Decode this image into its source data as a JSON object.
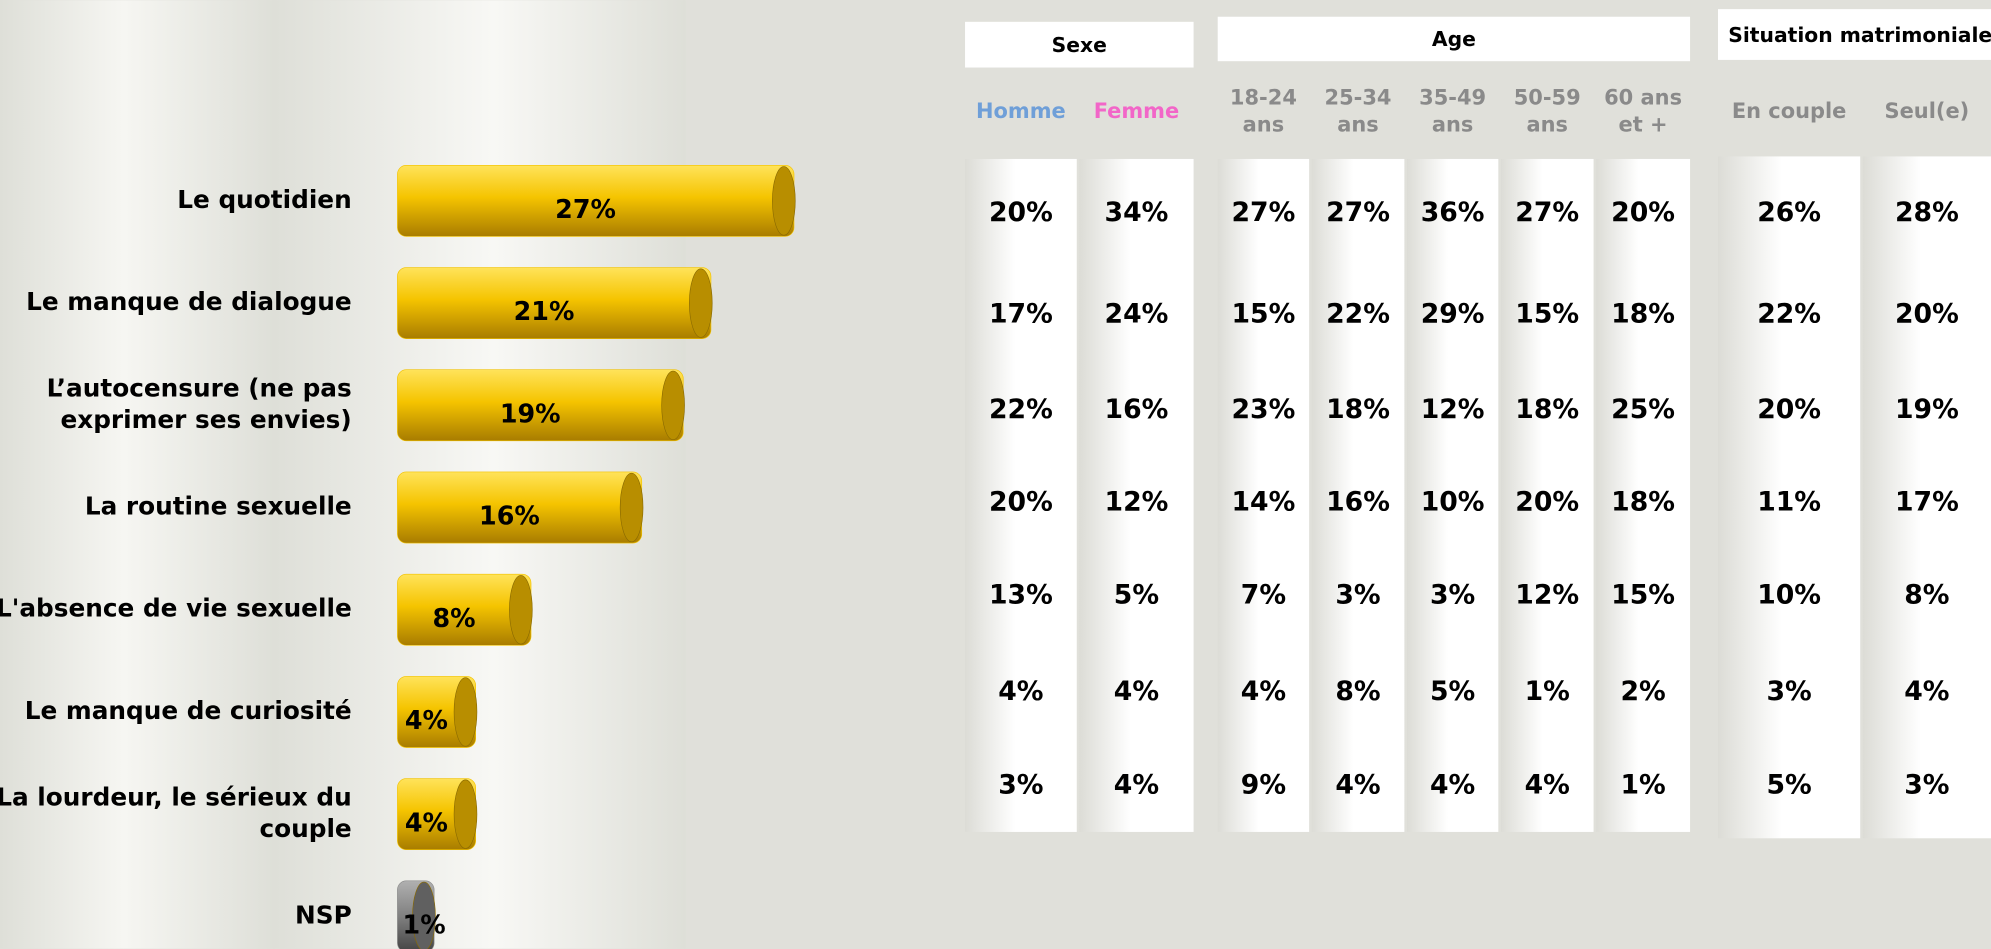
{
  "chart_data": {
    "type": "bar",
    "orientation": "horizontal",
    "categories": [
      [
        "Le quotidien"
      ],
      [
        "Le manque de dialogue"
      ],
      [
        "L’autocensure (ne pas",
        "exprimer ses envies)"
      ],
      [
        "La routine sexuelle"
      ],
      [
        "L'absence de vie sexuelle"
      ],
      [
        "Le manque de curiosité"
      ],
      [
        "La lourdeur, le sérieux du",
        "couple"
      ],
      [
        "NSP"
      ]
    ],
    "values": [
      27,
      21,
      19,
      16,
      8,
      4,
      4,
      1
    ],
    "value_labels": [
      "27%",
      "21%",
      "19%",
      "16%",
      "8%",
      "4%",
      "4%",
      "1%"
    ],
    "colors": [
      "#f2c200",
      "#f2c200",
      "#f2c200",
      "#f2c200",
      "#f2c200",
      "#f2c200",
      "#f2c200",
      "#8a8a8a"
    ]
  },
  "table": {
    "groups": [
      {
        "title": "Sexe",
        "columns": [
          {
            "lines": [
              "Homme"
            ],
            "color": "#6f9fd8"
          },
          {
            "lines": [
              "Femme"
            ],
            "color": "#f266c8"
          }
        ]
      },
      {
        "title": "Age",
        "columns": [
          {
            "lines": [
              "18-24",
              "ans"
            ],
            "color": "#8a8a8a"
          },
          {
            "lines": [
              "25-34",
              "ans"
            ],
            "color": "#8a8a8a"
          },
          {
            "lines": [
              "35-49",
              "ans"
            ],
            "color": "#8a8a8a"
          },
          {
            "lines": [
              "50-59",
              "ans"
            ],
            "color": "#8a8a8a"
          },
          {
            "lines": [
              "60 ans",
              "et +"
            ],
            "color": "#8a8a8a"
          }
        ]
      },
      {
        "title": "Situation matrimoniale",
        "columns": [
          {
            "lines": [
              "En couple"
            ],
            "color": "#8a8a8a"
          },
          {
            "lines": [
              "Seul(e)"
            ],
            "color": "#8a8a8a"
          }
        ]
      }
    ],
    "rows": [
      [
        "20%",
        "34%",
        "27%",
        "27%",
        "36%",
        "27%",
        "20%",
        "26%",
        "28%"
      ],
      [
        "17%",
        "24%",
        "15%",
        "22%",
        "29%",
        "15%",
        "18%",
        "22%",
        "20%"
      ],
      [
        "22%",
        "16%",
        "23%",
        "18%",
        "12%",
        "18%",
        "25%",
        "20%",
        "19%"
      ],
      [
        "20%",
        "12%",
        "14%",
        "16%",
        "10%",
        "20%",
        "18%",
        "11%",
        "17%"
      ],
      [
        "13%",
        "5%",
        "7%",
        "3%",
        "3%",
        "12%",
        "15%",
        "10%",
        "8%"
      ],
      [
        "4%",
        "4%",
        "4%",
        "8%",
        "5%",
        "1%",
        "2%",
        "3%",
        "4%"
      ],
      [
        "3%",
        "4%",
        "9%",
        "4%",
        "4%",
        "4%",
        "1%",
        "5%",
        "3%"
      ]
    ]
  }
}
